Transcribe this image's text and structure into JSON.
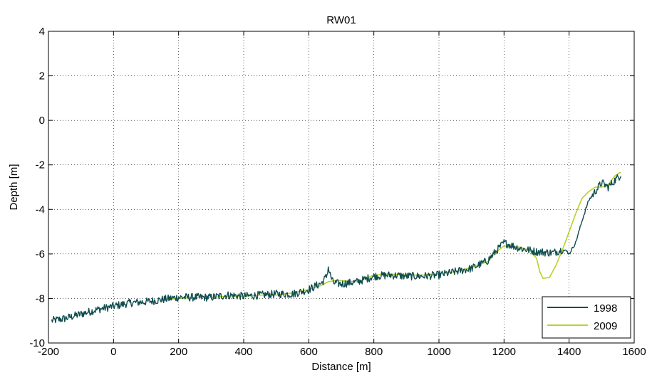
{
  "chart_data": {
    "type": "line",
    "title": "RW01",
    "xlabel": "Distance [m]",
    "ylabel": "Depth [m]",
    "xlim": [
      -200,
      1600
    ],
    "ylim": [
      -10,
      4
    ],
    "xticks": [
      "-200",
      "0",
      "200",
      "400",
      "600",
      "800",
      "1000",
      "1200",
      "1400",
      "1600"
    ],
    "yticks": [
      "-10",
      "-8",
      "-6",
      "-4",
      "-2",
      "0",
      "2",
      "4"
    ],
    "grid": true,
    "legend_position": "bottom-right",
    "series": [
      {
        "name": "1998",
        "color": "#0f4d4f",
        "noisy": true,
        "x": [
          -190,
          -150,
          -100,
          -50,
          0,
          50,
          100,
          150,
          200,
          250,
          300,
          350,
          400,
          450,
          500,
          550,
          600,
          640,
          655,
          660,
          665,
          675,
          700,
          750,
          800,
          850,
          900,
          950,
          1000,
          1050,
          1100,
          1150,
          1180,
          1200,
          1220,
          1250,
          1300,
          1350,
          1380,
          1395,
          1400,
          1420,
          1440,
          1460,
          1480,
          1500,
          1520,
          1540,
          1555,
          1560
        ],
        "y": [
          -9.0,
          -8.9,
          -8.7,
          -8.5,
          -8.35,
          -8.2,
          -8.15,
          -8.05,
          -7.95,
          -7.95,
          -7.95,
          -7.85,
          -7.9,
          -7.85,
          -7.8,
          -7.8,
          -7.6,
          -7.3,
          -7.0,
          -6.6,
          -6.9,
          -7.3,
          -7.35,
          -7.25,
          -7.0,
          -6.95,
          -7.0,
          -7.0,
          -6.95,
          -6.8,
          -6.65,
          -6.3,
          -5.8,
          -5.5,
          -5.6,
          -5.75,
          -5.9,
          -5.95,
          -5.8,
          -5.9,
          -6.0,
          -5.5,
          -4.5,
          -3.6,
          -3.2,
          -2.8,
          -3.0,
          -2.7,
          -2.5,
          -2.4
        ]
      },
      {
        "name": "2009",
        "color": "#b8d12c",
        "noisy": false,
        "x": [
          140,
          200,
          250,
          300,
          350,
          400,
          450,
          500,
          550,
          600,
          640,
          660,
          680,
          700,
          750,
          800,
          850,
          900,
          950,
          1000,
          1050,
          1100,
          1150,
          1170,
          1190,
          1200,
          1220,
          1250,
          1280,
          1300,
          1310,
          1320,
          1340,
          1360,
          1380,
          1400,
          1420,
          1440,
          1460,
          1480,
          1500,
          1520,
          1540,
          1555,
          1560
        ],
        "y": [
          -8.05,
          -8.0,
          -7.95,
          -7.95,
          -7.9,
          -7.9,
          -7.85,
          -7.85,
          -7.75,
          -7.6,
          -7.4,
          -7.25,
          -7.2,
          -7.2,
          -7.25,
          -6.95,
          -6.9,
          -6.95,
          -6.95,
          -6.9,
          -6.8,
          -6.6,
          -6.35,
          -6.0,
          -5.75,
          -5.65,
          -5.65,
          -5.7,
          -5.85,
          -6.2,
          -6.8,
          -7.1,
          -7.05,
          -6.5,
          -5.8,
          -5.0,
          -4.2,
          -3.5,
          -3.2,
          -3.0,
          -3.0,
          -2.9,
          -2.5,
          -2.35,
          -2.35
        ]
      }
    ]
  }
}
